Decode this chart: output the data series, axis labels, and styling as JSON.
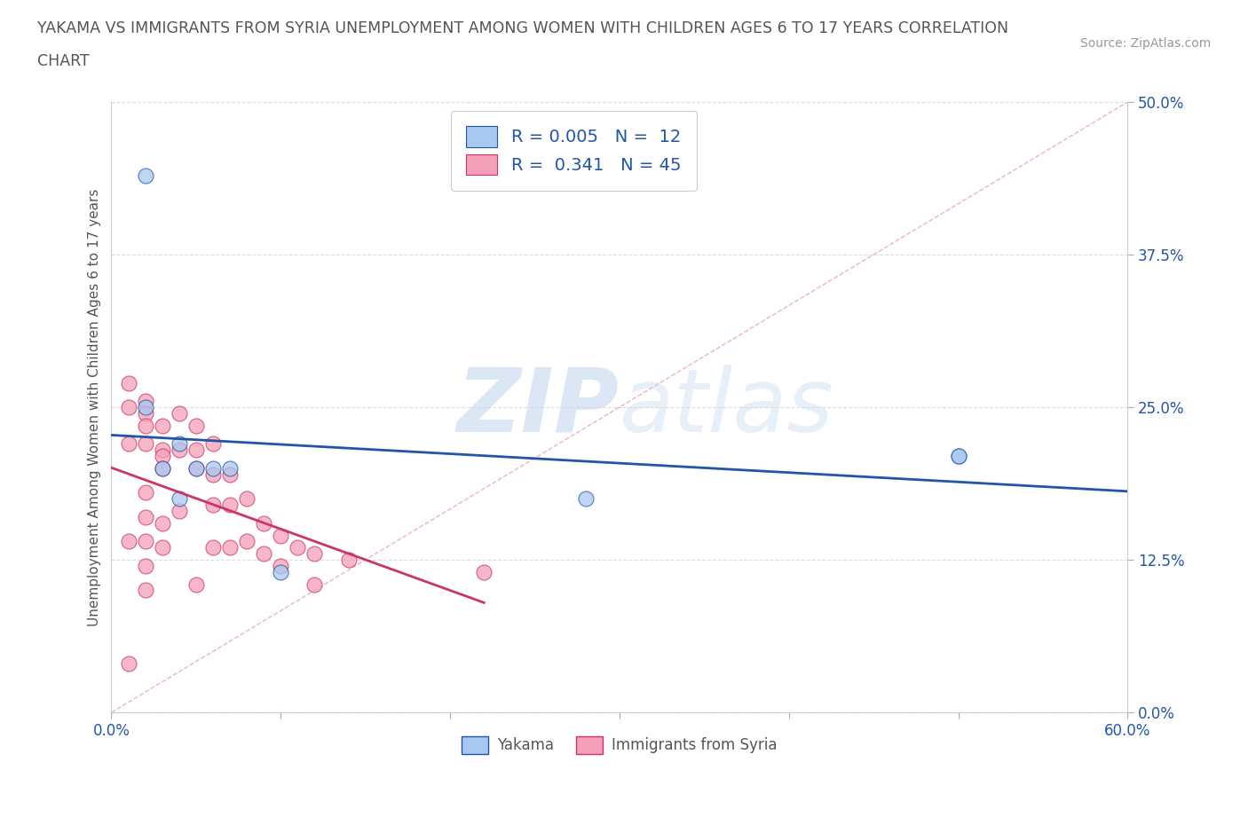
{
  "title_line1": "YAKAMA VS IMMIGRANTS FROM SYRIA UNEMPLOYMENT AMONG WOMEN WITH CHILDREN AGES 6 TO 17 YEARS CORRELATION",
  "title_line2": "CHART",
  "source_text": "Source: ZipAtlas.com",
  "ylabel": "Unemployment Among Women with Children Ages 6 to 17 years",
  "xlim": [
    0.0,
    0.6
  ],
  "ylim": [
    0.0,
    0.5
  ],
  "xticks": [
    0.0,
    0.1,
    0.2,
    0.3,
    0.4,
    0.5,
    0.6
  ],
  "xticklabels": [
    "0.0%",
    "",
    "",
    "",
    "",
    "",
    "60.0%"
  ],
  "yticks_right": [
    0.0,
    0.125,
    0.25,
    0.375,
    0.5
  ],
  "yticklabels_right": [
    "0.0%",
    "12.5%",
    "25.0%",
    "37.5%",
    "50.0%"
  ],
  "watermark_zip": "ZIP",
  "watermark_atlas": "atlas",
  "blue_color": "#A8C8F0",
  "pink_color": "#F4A0B8",
  "regression_blue_color": "#2255AA",
  "regression_pink_color": "#CC3366",
  "diag_color": "#E8A0B8",
  "legend_R_blue": "0.005",
  "legend_N_blue": "12",
  "legend_R_pink": "0.341",
  "legend_N_pink": "45",
  "legend_color": "#2255AA",
  "yakama_x": [
    0.02,
    0.02,
    0.03,
    0.04,
    0.04,
    0.05,
    0.06,
    0.07,
    0.1,
    0.28,
    0.5,
    0.5
  ],
  "yakama_y": [
    0.44,
    0.25,
    0.2,
    0.22,
    0.175,
    0.2,
    0.2,
    0.2,
    0.115,
    0.175,
    0.21,
    0.21
  ],
  "syria_x": [
    0.01,
    0.01,
    0.01,
    0.01,
    0.01,
    0.02,
    0.02,
    0.02,
    0.02,
    0.02,
    0.02,
    0.02,
    0.02,
    0.02,
    0.03,
    0.03,
    0.03,
    0.03,
    0.03,
    0.03,
    0.04,
    0.04,
    0.04,
    0.05,
    0.05,
    0.05,
    0.05,
    0.06,
    0.06,
    0.06,
    0.06,
    0.07,
    0.07,
    0.07,
    0.08,
    0.08,
    0.09,
    0.09,
    0.1,
    0.1,
    0.11,
    0.12,
    0.12,
    0.14,
    0.22
  ],
  "syria_y": [
    0.27,
    0.25,
    0.22,
    0.14,
    0.04,
    0.255,
    0.245,
    0.235,
    0.22,
    0.18,
    0.16,
    0.14,
    0.12,
    0.1,
    0.235,
    0.215,
    0.21,
    0.2,
    0.155,
    0.135,
    0.245,
    0.215,
    0.165,
    0.235,
    0.215,
    0.2,
    0.105,
    0.22,
    0.195,
    0.17,
    0.135,
    0.195,
    0.17,
    0.135,
    0.175,
    0.14,
    0.155,
    0.13,
    0.145,
    0.12,
    0.135,
    0.13,
    0.105,
    0.125,
    0.115
  ],
  "grid_color": "#DDDDDD",
  "grid_style": "dashed",
  "bg_color": "#FFFFFF",
  "title_color": "#555555",
  "axis_text_color": "#2255AA"
}
